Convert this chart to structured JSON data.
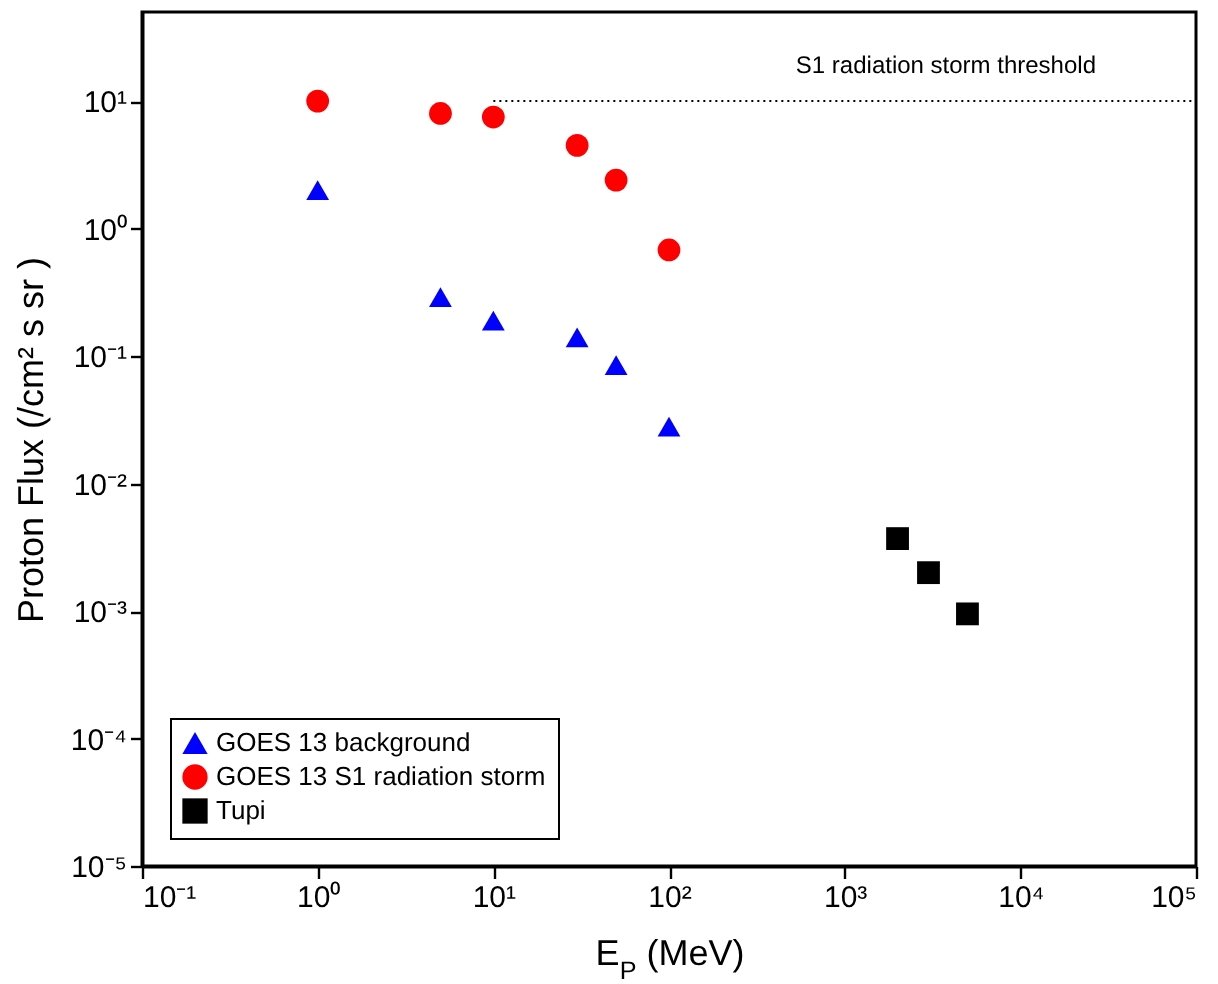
{
  "chart_data": {
    "type": "scatter",
    "xlabel": "E$_{P}$ (MeV)",
    "ylabel": "Proton Flux (/cm² s sr )",
    "log": "xy",
    "grid": false,
    "legend": "bottom left",
    "xlim": [
      0.1,
      100000
    ],
    "ylim": [
      1e-05,
      50
    ],
    "xticks": [
      {
        "value": 0.1,
        "label": "10⁻¹"
      },
      {
        "value": 1,
        "label": "10⁰"
      },
      {
        "value": 10,
        "label": "10¹"
      },
      {
        "value": 100,
        "label": "10²"
      },
      {
        "value": 1000,
        "label": "10³"
      },
      {
        "value": 10000,
        "label": "10⁴"
      },
      {
        "value": 100000,
        "label": "10⁵"
      }
    ],
    "yticks": [
      {
        "value": 1e-05,
        "label": "10⁻⁵"
      },
      {
        "value": 0.0001,
        "label": "10⁻⁴"
      },
      {
        "value": 0.001,
        "label": "10⁻³"
      },
      {
        "value": 0.01,
        "label": "10⁻²"
      },
      {
        "value": 0.1,
        "label": "10⁻¹"
      },
      {
        "value": 1,
        "label": "10⁰"
      },
      {
        "value": 10,
        "label": "10¹"
      }
    ],
    "series": [
      {
        "name": "GOES 13 background",
        "color": "#0000ff",
        "marker": "triangle",
        "x": [
          1,
          5,
          10,
          30,
          50,
          100
        ],
        "values": [
          2,
          0.29,
          0.19,
          0.14,
          0.085,
          0.028
        ]
      },
      {
        "name": "GOES 13 S1 radiation storm",
        "color": "#ff0000",
        "marker": "circle",
        "x": [
          1,
          5,
          10,
          30,
          50,
          100
        ],
        "values": [
          10,
          8,
          7.5,
          4.5,
          2.4,
          0.68
        ]
      },
      {
        "name": "Tupi",
        "color": "#000000",
        "marker": "square",
        "x": [
          2000,
          3000,
          5000
        ],
        "values": [
          0.0037,
          0.002,
          0.00095
        ]
      },
      {
        "name": "S1 radiation storm threshold",
        "type": "line",
        "color": "#000000",
        "line_style": "dotted",
        "marker": "none",
        "x": [
          10,
          100000
        ],
        "values": [
          10,
          10
        ]
      }
    ]
  }
}
